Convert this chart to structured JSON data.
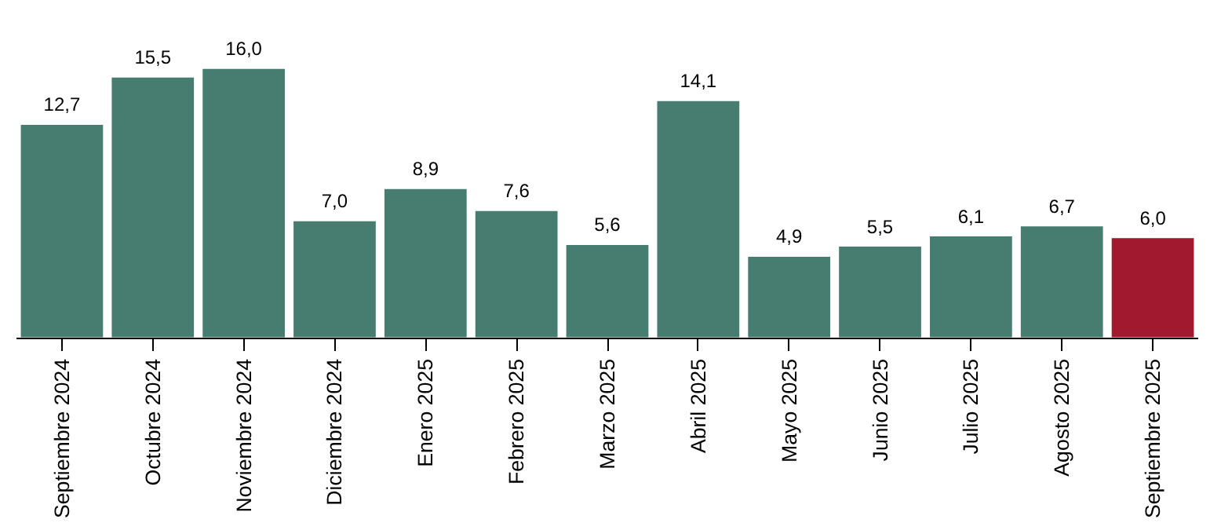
{
  "chart_data": {
    "type": "bar",
    "categories": [
      "Septiembre 2024",
      "Octubre 2024",
      "Noviembre 2024",
      "Diciembre 2024",
      "Enero 2025",
      "Febrero 2025",
      "Marzo 2025",
      "Abril 2025",
      "Mayo 2025",
      "Junio 2025",
      "Julio 2025",
      "Agosto 2025",
      "Septiembre 2025"
    ],
    "values": [
      12.7,
      15.5,
      16.0,
      7.0,
      8.9,
      7.6,
      5.6,
      14.1,
      4.9,
      5.5,
      6.1,
      6.7,
      6.0
    ],
    "value_labels": [
      "12,7",
      "15,5",
      "16,0",
      "7,0",
      "8,9",
      "7,6",
      "5,6",
      "14,1",
      "4,9",
      "5,5",
      "6,1",
      "6,7",
      "6,0"
    ],
    "colors": [
      "#477d70",
      "#477d70",
      "#477d70",
      "#477d70",
      "#477d70",
      "#477d70",
      "#477d70",
      "#477d70",
      "#477d70",
      "#477d70",
      "#477d70",
      "#477d70",
      "#a0192f"
    ],
    "grid": false
  }
}
